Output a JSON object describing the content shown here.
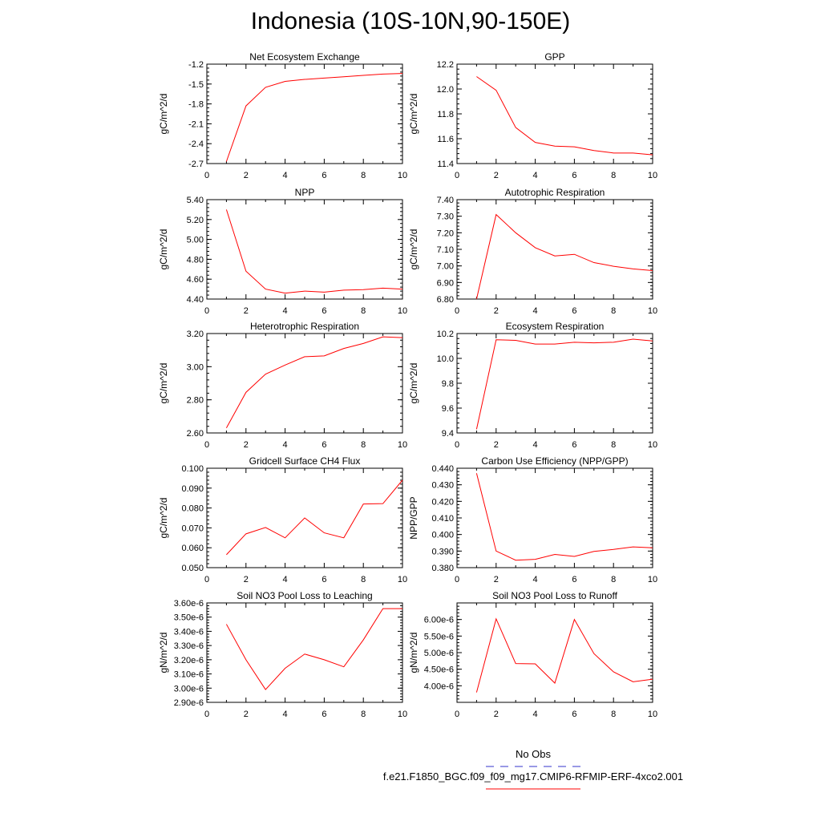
{
  "title": "Indonesia (10S-10N,90-150E)",
  "legend": {
    "obs_label": "No Obs",
    "case_label": "f.e21.F1850_BGC.f09_f09_mg17.CMIP6-RFMIP-ERF-4xco2.001",
    "obs_color": "#3333cc",
    "case_color": "#ff0000"
  },
  "chart_data": [
    {
      "type": "line",
      "title": "Net Ecosystem Exchange",
      "ylabel": "gC/m^2/d",
      "xlim": [
        0,
        10
      ],
      "ylim": [
        -2.7,
        -1.2
      ],
      "xticks": [
        0,
        2,
        4,
        6,
        8,
        10
      ],
      "yticks": [
        -2.7,
        -2.4,
        -2.1,
        -1.8,
        -1.5,
        -1.2
      ],
      "ytick_labels": [
        "-2.7",
        "-2.4",
        "-2.1",
        "-1.8",
        "-1.5",
        "-1.2"
      ],
      "x": [
        1,
        2,
        3,
        4,
        5,
        6,
        7,
        8,
        9,
        10
      ],
      "y": [
        -2.67,
        -1.83,
        -1.55,
        -1.46,
        -1.43,
        -1.41,
        -1.39,
        -1.37,
        -1.35,
        -1.34
      ]
    },
    {
      "type": "line",
      "title": "GPP",
      "ylabel": "gC/m^2/d",
      "xlim": [
        0,
        10
      ],
      "ylim": [
        11.4,
        12.2
      ],
      "xticks": [
        0,
        2,
        4,
        6,
        8,
        10
      ],
      "yticks": [
        11.4,
        11.6,
        11.8,
        12.0,
        12.2
      ],
      "ytick_labels": [
        "11.4",
        "11.6",
        "11.8",
        "12.0",
        "12.2"
      ],
      "x": [
        1,
        2,
        3,
        4,
        5,
        6,
        7,
        8,
        9,
        10
      ],
      "y": [
        12.1,
        11.99,
        11.69,
        11.57,
        11.54,
        11.535,
        11.505,
        11.485,
        11.485,
        11.47
      ]
    },
    {
      "type": "line",
      "title": "NPP",
      "ylabel": "gC/m^2/d",
      "xlim": [
        0,
        10
      ],
      "ylim": [
        4.4,
        5.4
      ],
      "xticks": [
        0,
        2,
        4,
        6,
        8,
        10
      ],
      "yticks": [
        4.4,
        4.6,
        4.8,
        5.0,
        5.2,
        5.4
      ],
      "ytick_labels": [
        "4.40",
        "4.60",
        "4.80",
        "5.00",
        "5.20",
        "5.40"
      ],
      "x": [
        1,
        2,
        3,
        4,
        5,
        6,
        7,
        8,
        9,
        10
      ],
      "y": [
        5.3,
        4.68,
        4.5,
        4.46,
        4.48,
        4.47,
        4.49,
        4.495,
        4.51,
        4.5
      ]
    },
    {
      "type": "line",
      "title": "Autotrophic Respiration",
      "ylabel": "gC/m^2/d",
      "xlim": [
        0,
        10
      ],
      "ylim": [
        6.8,
        7.4
      ],
      "xticks": [
        0,
        2,
        4,
        6,
        8,
        10
      ],
      "yticks": [
        6.8,
        6.9,
        7.0,
        7.1,
        7.2,
        7.3,
        7.4
      ],
      "ytick_labels": [
        "6.80",
        "6.90",
        "7.00",
        "7.10",
        "7.20",
        "7.30",
        "7.40"
      ],
      "x": [
        1,
        2,
        3,
        4,
        5,
        6,
        7,
        8,
        9,
        10
      ],
      "y": [
        6.8,
        7.31,
        7.2,
        7.11,
        7.06,
        7.07,
        7.02,
        6.998,
        6.982,
        6.972
      ]
    },
    {
      "type": "line",
      "title": "Heterotrophic Respiration",
      "ylabel": "gC/m^2/d",
      "xlim": [
        0,
        10
      ],
      "ylim": [
        2.6,
        3.2
      ],
      "xticks": [
        0,
        2,
        4,
        6,
        8,
        10
      ],
      "yticks": [
        2.6,
        2.8,
        3.0,
        3.2
      ],
      "ytick_labels": [
        "2.60",
        "2.80",
        "3.00",
        "3.20"
      ],
      "x": [
        1,
        2,
        3,
        4,
        5,
        6,
        7,
        8,
        9,
        10
      ],
      "y": [
        2.63,
        2.845,
        2.955,
        3.01,
        3.06,
        3.065,
        3.11,
        3.14,
        3.18,
        3.175
      ]
    },
    {
      "type": "line",
      "title": "Ecosystem Respiration",
      "ylabel": "gC/m^2/d",
      "xlim": [
        0,
        10
      ],
      "ylim": [
        9.4,
        10.2
      ],
      "xticks": [
        0,
        2,
        4,
        6,
        8,
        10
      ],
      "yticks": [
        9.4,
        9.6,
        9.8,
        10.0,
        10.2
      ],
      "ytick_labels": [
        "9.4",
        "9.6",
        "9.8",
        "10.0",
        "10.2"
      ],
      "x": [
        1,
        2,
        3,
        4,
        5,
        6,
        7,
        8,
        9,
        10
      ],
      "y": [
        9.43,
        10.15,
        10.145,
        10.115,
        10.115,
        10.13,
        10.125,
        10.13,
        10.155,
        10.14
      ]
    },
    {
      "type": "line",
      "title": "Gridcell Surface CH4 Flux",
      "ylabel": "gC/m^2/d",
      "xlim": [
        0,
        10
      ],
      "ylim": [
        0.05,
        0.1
      ],
      "xticks": [
        0,
        2,
        4,
        6,
        8,
        10
      ],
      "yticks": [
        0.05,
        0.06,
        0.07,
        0.08,
        0.09,
        0.1
      ],
      "ytick_labels": [
        "0.050",
        "0.060",
        "0.070",
        "0.080",
        "0.090",
        "0.100"
      ],
      "x": [
        1,
        2,
        3,
        4,
        5,
        6,
        7,
        8,
        9,
        10
      ],
      "y": [
        0.0565,
        0.067,
        0.0702,
        0.065,
        0.075,
        0.0675,
        0.065,
        0.082,
        0.0822,
        0.094
      ]
    },
    {
      "type": "line",
      "title": "Carbon Use Efficiency (NPP/GPP)",
      "ylabel": "NPP/GPP",
      "xlim": [
        0,
        10
      ],
      "ylim": [
        0.38,
        0.44
      ],
      "xticks": [
        0,
        2,
        4,
        6,
        8,
        10
      ],
      "yticks": [
        0.38,
        0.39,
        0.4,
        0.41,
        0.42,
        0.43,
        0.44
      ],
      "ytick_labels": [
        "0.380",
        "0.390",
        "0.400",
        "0.410",
        "0.420",
        "0.430",
        "0.440"
      ],
      "x": [
        1,
        2,
        3,
        4,
        5,
        6,
        7,
        8,
        9,
        10
      ],
      "y": [
        0.437,
        0.39,
        0.3845,
        0.385,
        0.388,
        0.3868,
        0.3898,
        0.391,
        0.3925,
        0.392
      ]
    },
    {
      "type": "line",
      "title": "Soil NO3 Pool Loss to Leaching",
      "ylabel": "gN/m^2/d",
      "xlim": [
        0,
        10
      ],
      "ylim": [
        2.9e-06,
        3.6e-06
      ],
      "xticks": [
        0,
        2,
        4,
        6,
        8,
        10
      ],
      "yticks": [
        2.9e-06,
        3e-06,
        3.1e-06,
        3.2e-06,
        3.3e-06,
        3.4e-06,
        3.5e-06,
        3.6e-06
      ],
      "ytick_labels": [
        "2.90e-6",
        "3.00e-6",
        "3.10e-6",
        "3.20e-6",
        "3.30e-6",
        "3.40e-6",
        "3.50e-6",
        "3.60e-6"
      ],
      "x": [
        1,
        2,
        3,
        4,
        5,
        6,
        7,
        8,
        9,
        10
      ],
      "y": [
        3.45e-06,
        3.2e-06,
        2.99e-06,
        3.14e-06,
        3.24e-06,
        3.2e-06,
        3.15e-06,
        3.34e-06,
        3.56e-06,
        3.56e-06
      ]
    },
    {
      "type": "line",
      "title": "Soil NO3 Pool Loss to Runoff",
      "ylabel": "gN/m^2/d",
      "xlim": [
        0,
        10
      ],
      "ylim": [
        3.5e-06,
        6.5e-06
      ],
      "xticks": [
        0,
        2,
        4,
        6,
        8,
        10
      ],
      "yticks": [
        4e-06,
        4.5e-06,
        5e-06,
        5.5e-06,
        6e-06
      ],
      "ytick_labels": [
        "4.00e-6",
        "4.50e-6",
        "5.00e-6",
        "5.50e-6",
        "6.00e-6"
      ],
      "x": [
        1,
        2,
        3,
        4,
        5,
        6,
        7,
        8,
        9,
        10
      ],
      "y": [
        3.8e-06,
        6.02e-06,
        4.67e-06,
        4.66e-06,
        4.08e-06,
        6e-06,
        4.97e-06,
        4.42e-06,
        4.12e-06,
        4.2e-06
      ]
    }
  ]
}
